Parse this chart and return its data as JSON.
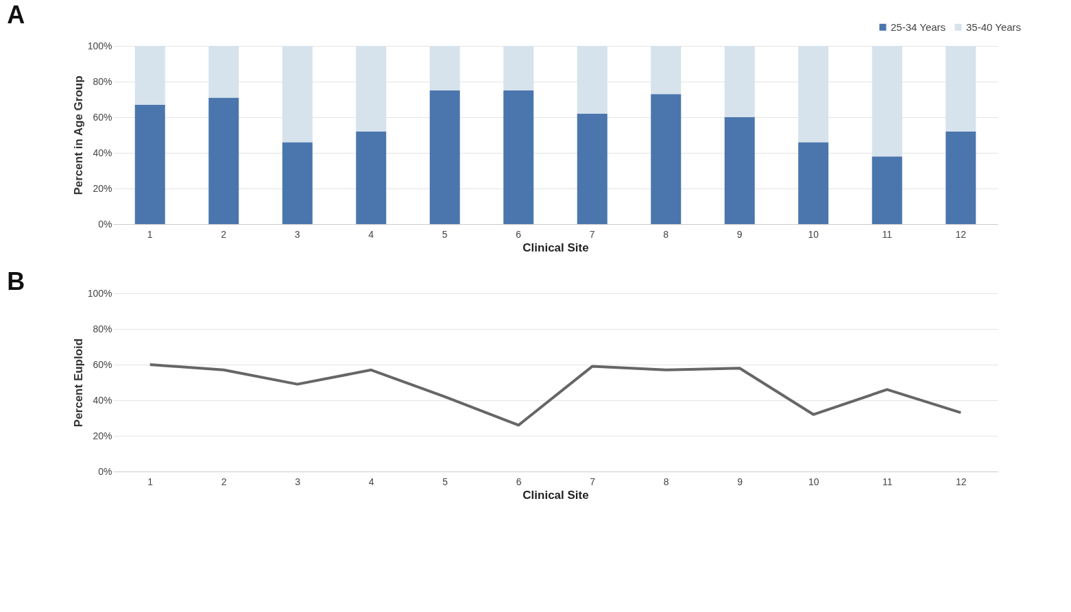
{
  "chart_data": [
    {
      "type": "bar",
      "title": "A",
      "xlabel": "Clinical Site",
      "ylabel": "Percent in Age Group",
      "stacked": true,
      "legend": "top right",
      "grid": "y",
      "categories": [
        "1",
        "2",
        "3",
        "4",
        "5",
        "6",
        "7",
        "8",
        "9",
        "10",
        "11",
        "12"
      ],
      "series": [
        {
          "name": "25-34 Years",
          "color": "#4a76ad",
          "values": [
            67,
            71,
            46,
            52,
            75,
            75,
            62,
            73,
            60,
            46,
            38,
            52
          ]
        },
        {
          "name": "35-40 Years",
          "color": "#d6e2ec",
          "values": [
            33,
            29,
            54,
            48,
            25,
            25,
            38,
            27,
            40,
            54,
            62,
            48
          ]
        }
      ],
      "ylim": [
        0,
        100
      ],
      "yticks": [
        {
          "value": 0,
          "label": "0%"
        },
        {
          "value": 20,
          "label": "20%"
        },
        {
          "value": 40,
          "label": "40%"
        },
        {
          "value": 60,
          "label": "60%"
        },
        {
          "value": 80,
          "label": "80%"
        },
        {
          "value": 100,
          "label": "100%"
        }
      ]
    },
    {
      "type": "line",
      "title": "B",
      "xlabel": "Clinical Site",
      "ylabel": "Percent Euploid",
      "grid": "y",
      "marker": "none",
      "line_style": "solid",
      "categories": [
        "1",
        "2",
        "3",
        "4",
        "5",
        "6",
        "7",
        "8",
        "9",
        "10",
        "11",
        "12"
      ],
      "series": [
        {
          "color": "#666666",
          "values": [
            60,
            57,
            49,
            57,
            42,
            26,
            59,
            57,
            58,
            32,
            46,
            33
          ]
        }
      ],
      "ylim": [
        0,
        100
      ],
      "yticks": [
        {
          "value": 0,
          "label": "0%"
        },
        {
          "value": 20,
          "label": "20%"
        },
        {
          "value": 40,
          "label": "40%"
        },
        {
          "value": 60,
          "label": "60%"
        },
        {
          "value": 80,
          "label": "80%"
        },
        {
          "value": 100,
          "label": "100%"
        }
      ]
    }
  ]
}
